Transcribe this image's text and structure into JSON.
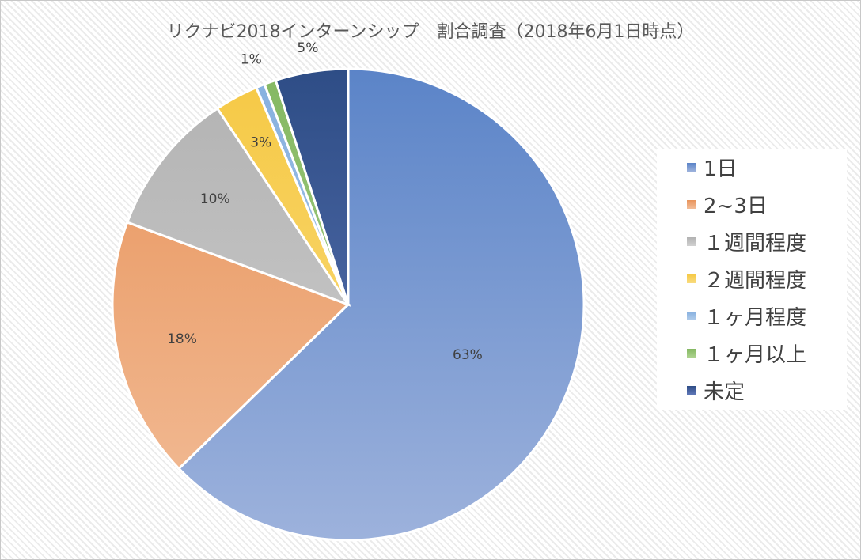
{
  "chart_data": {
    "type": "pie",
    "title": "リクナビ2018インターンシップ　割合調査（2018年6月1日時点）",
    "categories": [
      "1日",
      "2~3日",
      "１週間程度",
      "２週間程度",
      "１ヶ月程度",
      "１ヶ月以上",
      "未定"
    ],
    "values": [
      63,
      18,
      10,
      3,
      0.6,
      0.8,
      5
    ],
    "labels": [
      "63%",
      "18%",
      "10%",
      "3%",
      "",
      "1%",
      "5%"
    ],
    "colors": [
      "#5b84c8",
      "#e8935a",
      "#b2b2b2",
      "#f6c945",
      "#86b0df",
      "#84b862",
      "#2e4d86"
    ],
    "colors_light": [
      "#9db2dc",
      "#f2bd98",
      "#d1d1d1",
      "#f9dc80",
      "#b2cdea",
      "#aed38f",
      "#5f78b8"
    ],
    "legend_position": "right"
  }
}
